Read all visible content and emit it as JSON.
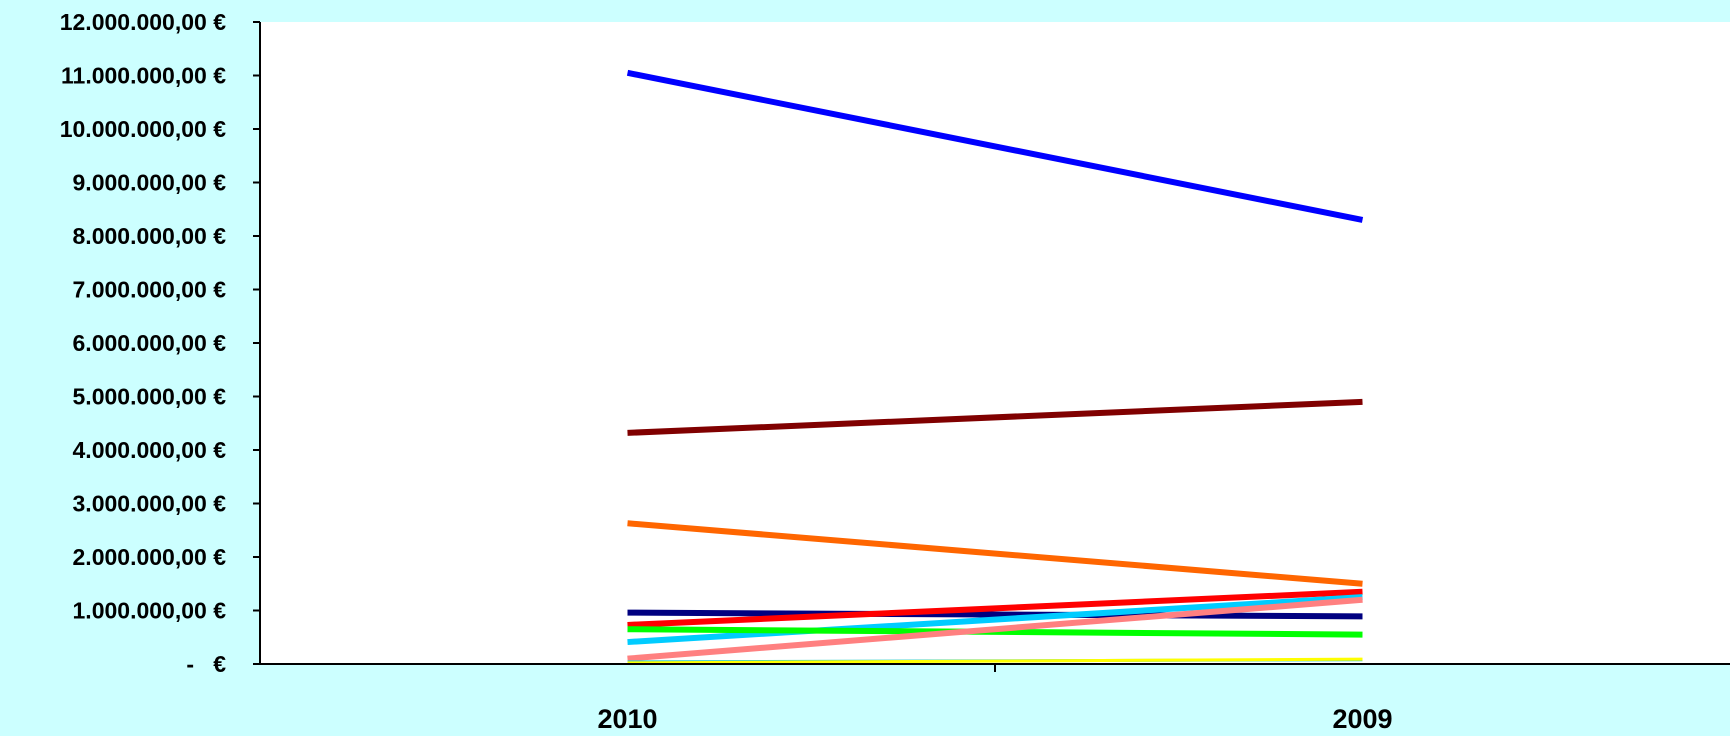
{
  "chart_data": {
    "type": "line",
    "title": "",
    "xlabel": "",
    "ylabel": "",
    "categories": [
      "2010",
      "2009"
    ],
    "ylim": [
      0,
      12000000
    ],
    "y_ticks": [
      {
        "value": 0,
        "label": "-   €"
      },
      {
        "value": 1000000,
        "label": "1.000.000,00 €"
      },
      {
        "value": 2000000,
        "label": "2.000.000,00 €"
      },
      {
        "value": 3000000,
        "label": "3.000.000,00 €"
      },
      {
        "value": 4000000,
        "label": "4.000.000,00 €"
      },
      {
        "value": 5000000,
        "label": "5.000.000,00 €"
      },
      {
        "value": 6000000,
        "label": "6.000.000,00 €"
      },
      {
        "value": 7000000,
        "label": "7.000.000,00 €"
      },
      {
        "value": 8000000,
        "label": "8.000.000,00 €"
      },
      {
        "value": 9000000,
        "label": "9.000.000,00 €"
      },
      {
        "value": 10000000,
        "label": "10.000.000,00 €"
      },
      {
        "value": 11000000,
        "label": "11.000.000,00 €"
      },
      {
        "value": 12000000,
        "label": "12.000.000,00 €"
      }
    ],
    "grid": false,
    "legend": "none",
    "background": "#ccffff",
    "plot_background": "#ffffff",
    "series": [
      {
        "color": "#0000ff",
        "values": [
          11050000,
          8300000
        ]
      },
      {
        "color": "#800000",
        "values": [
          4320000,
          4900000
        ]
      },
      {
        "color": "#ff6600",
        "values": [
          2630000,
          1500000
        ]
      },
      {
        "color": "#000080",
        "values": [
          960000,
          890000
        ]
      },
      {
        "color": "#ff0000",
        "values": [
          730000,
          1350000
        ]
      },
      {
        "color": "#00ccff",
        "values": [
          410000,
          1250000
        ]
      },
      {
        "color": "#00ff00",
        "values": [
          650000,
          550000
        ]
      },
      {
        "color": "#ff8080",
        "values": [
          100000,
          1200000
        ]
      },
      {
        "color": "#33cccc",
        "values": [
          40000,
          80000
        ]
      },
      {
        "color": "#ffff00",
        "values": [
          20000,
          90000
        ]
      }
    ]
  }
}
